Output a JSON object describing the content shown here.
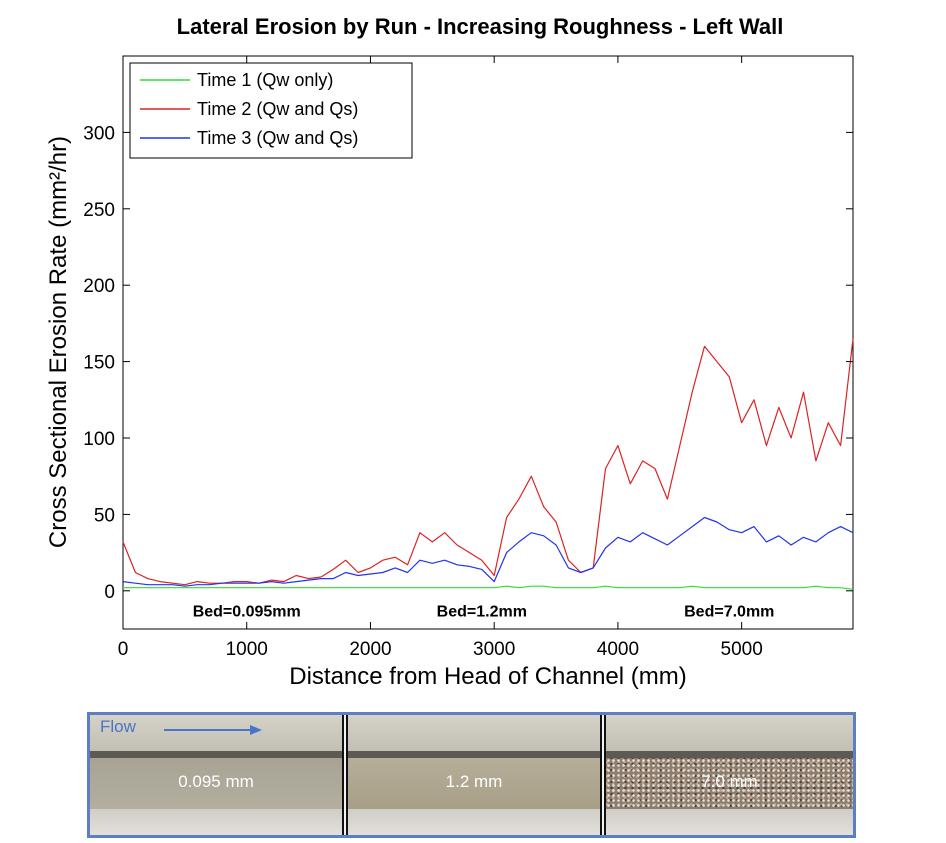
{
  "chart_data": {
    "type": "line",
    "title": "Lateral Erosion by Run - Increasing Roughness - Left Wall",
    "xlabel": "Distance from Head of Channel (mm)",
    "ylabel": "Cross Sectional Erosion Rate (mm²/hr)",
    "xlim": [
      0,
      5900
    ],
    "ylim": [
      -25,
      350
    ],
    "xticks": [
      0,
      1000,
      2000,
      3000,
      4000,
      5000
    ],
    "yticks": [
      0,
      50,
      100,
      150,
      200,
      250,
      300
    ],
    "grid": false,
    "legend_position": "top-left",
    "annotations": [
      {
        "text": "Bed=0.095mm",
        "x": 1000,
        "y": -13
      },
      {
        "text": "Bed=1.2mm",
        "x": 2900,
        "y": -13
      },
      {
        "text": "Bed=7.0mm",
        "x": 4900,
        "y": -13
      }
    ],
    "x": [
      0,
      100,
      200,
      300,
      400,
      500,
      600,
      700,
      800,
      900,
      1000,
      1100,
      1200,
      1300,
      1400,
      1500,
      1600,
      1700,
      1800,
      1900,
      2000,
      2100,
      2200,
      2300,
      2400,
      2500,
      2600,
      2700,
      2800,
      2900,
      3000,
      3100,
      3200,
      3300,
      3400,
      3500,
      3600,
      3700,
      3800,
      3900,
      4000,
      4100,
      4200,
      4300,
      4400,
      4500,
      4600,
      4700,
      4800,
      4900,
      5000,
      5100,
      5200,
      5300,
      5400,
      5500,
      5600,
      5700,
      5800,
      5900
    ],
    "series": [
      {
        "name": "Time 1 (Qw only)",
        "color": "#33dd33",
        "values": [
          2,
          2,
          2,
          2,
          2,
          2,
          2,
          2,
          2,
          2,
          2,
          2,
          2,
          2,
          2,
          2,
          2,
          2,
          2,
          2,
          2,
          2,
          2,
          2,
          2,
          2,
          2,
          2,
          2,
          2,
          2,
          3,
          2,
          3,
          3,
          2,
          2,
          2,
          2,
          3,
          2,
          2,
          2,
          2,
          2,
          2,
          3,
          2,
          2,
          2,
          2,
          2,
          2,
          2,
          2,
          2,
          3,
          2,
          2,
          1
        ]
      },
      {
        "name": "Time 2 (Qw and Qs)",
        "color": "#dd2222",
        "values": [
          32,
          12,
          8,
          6,
          5,
          4,
          6,
          5,
          5,
          6,
          6,
          5,
          7,
          6,
          10,
          8,
          9,
          14,
          20,
          12,
          15,
          20,
          22,
          17,
          38,
          32,
          38,
          30,
          25,
          20,
          10,
          48,
          60,
          75,
          55,
          45,
          20,
          12,
          15,
          80,
          95,
          70,
          85,
          80,
          60,
          95,
          130,
          160,
          150,
          140,
          110,
          125,
          95,
          120,
          100,
          130,
          85,
          110,
          95,
          165
        ]
      },
      {
        "name": "Time 3 (Qw and Qs)",
        "color": "#2233ee",
        "values": [
          6,
          5,
          4,
          4,
          4,
          3,
          4,
          4,
          5,
          5,
          5,
          5,
          6,
          5,
          6,
          7,
          8,
          8,
          12,
          10,
          11,
          12,
          15,
          12,
          20,
          18,
          20,
          17,
          16,
          14,
          6,
          25,
          32,
          38,
          36,
          30,
          15,
          12,
          15,
          28,
          35,
          32,
          38,
          34,
          30,
          36,
          42,
          48,
          45,
          40,
          38,
          42,
          32,
          36,
          30,
          35,
          32,
          38,
          42,
          38
        ]
      }
    ]
  },
  "photo_strip": {
    "flow_label": "Flow",
    "panels": [
      {
        "caption": "0.095 mm"
      },
      {
        "caption": "1.2 mm"
      },
      {
        "caption": "7.0 mm"
      }
    ]
  }
}
